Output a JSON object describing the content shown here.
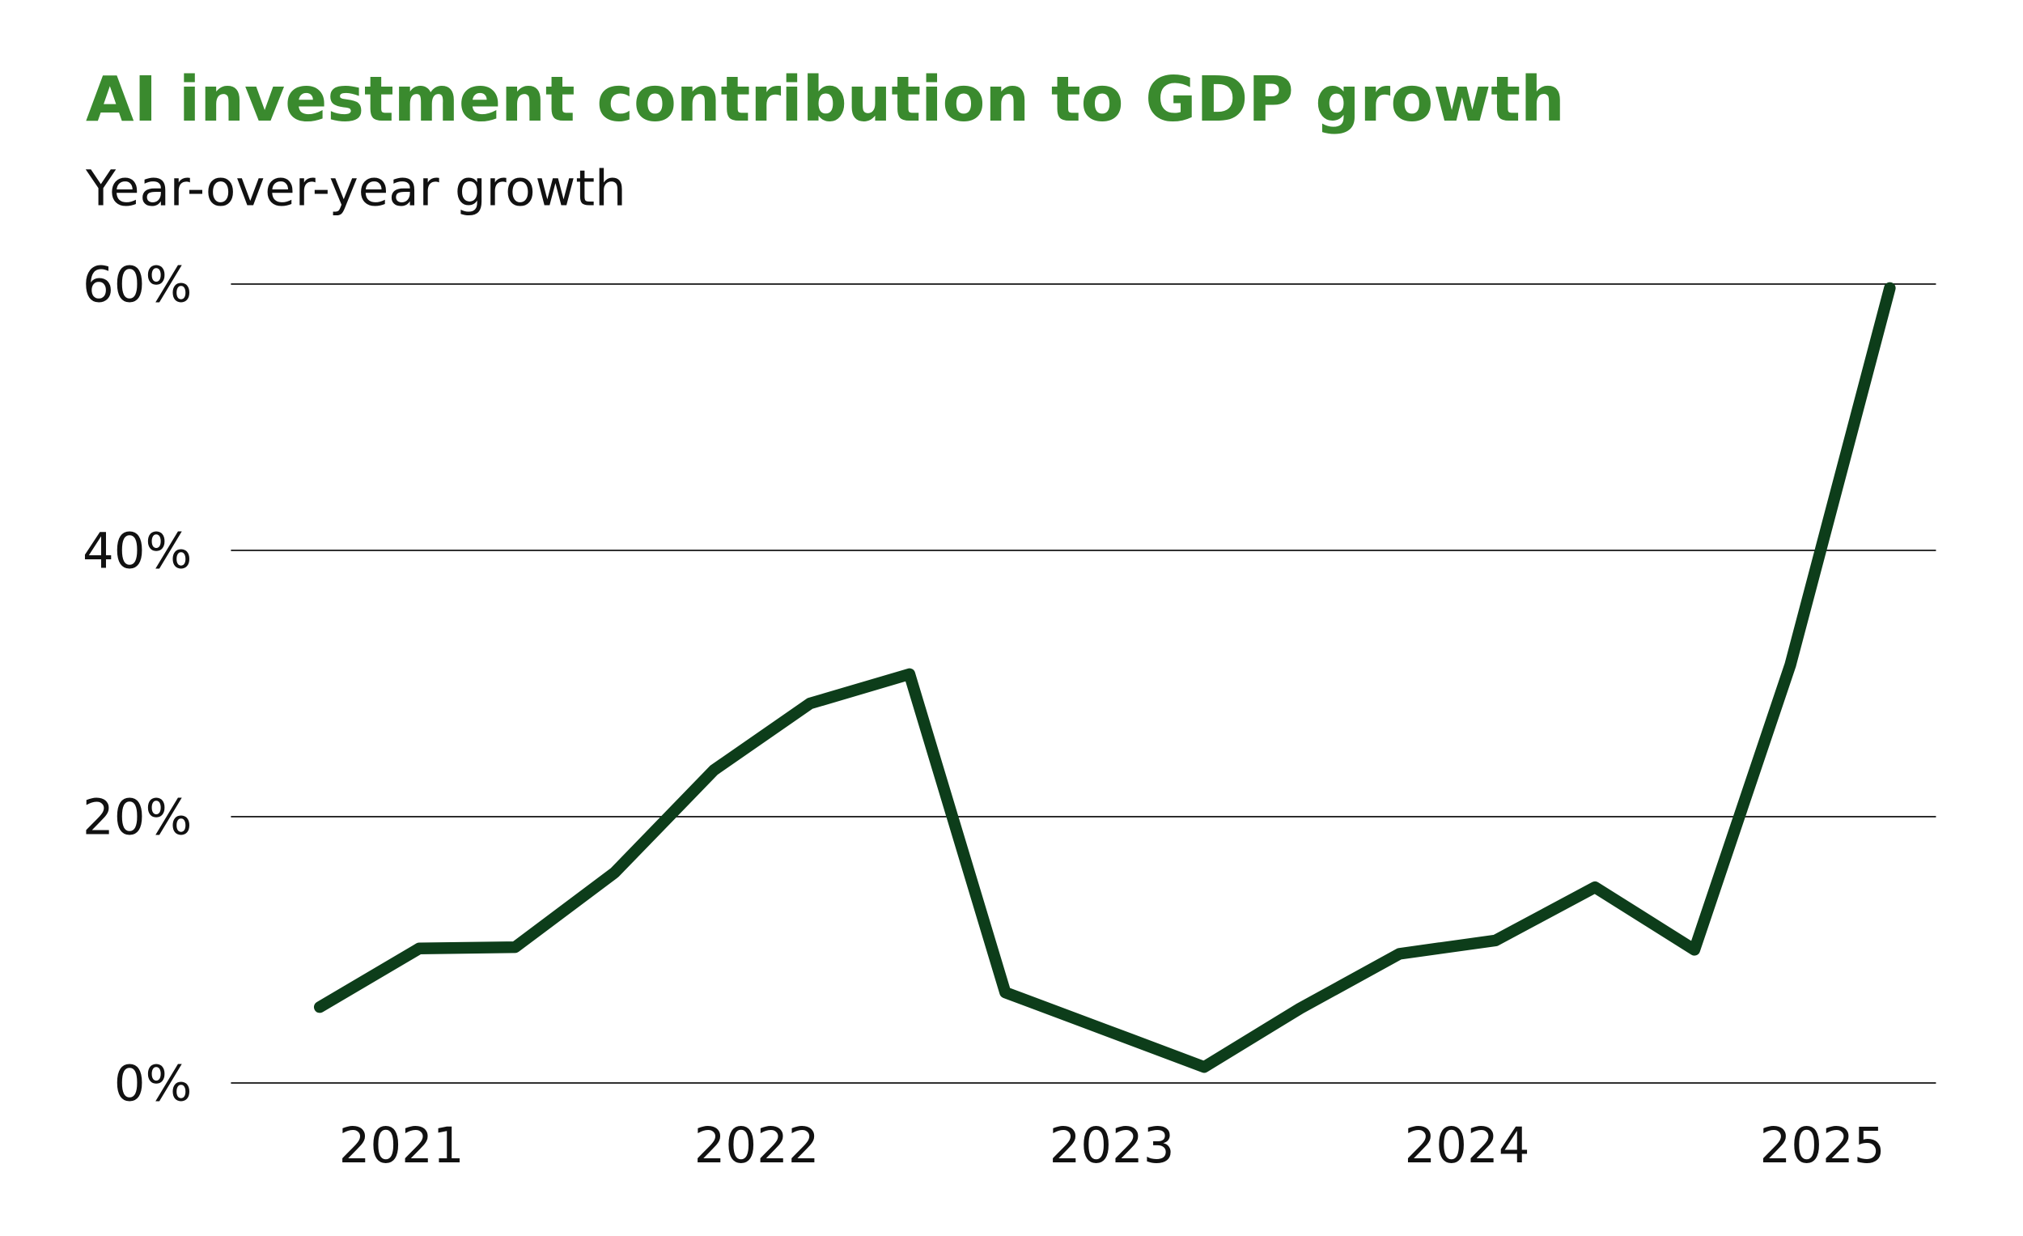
{
  "chart_data": {
    "type": "line",
    "title": "AI investment contribution to GDP growth",
    "subtitle": "Year-over-year growth",
    "x": [
      2020.77,
      2021.05,
      2021.32,
      2021.6,
      2021.88,
      2022.15,
      2022.43,
      2022.7,
      2022.98,
      2023.26,
      2023.53,
      2023.81,
      2024.08,
      2024.36,
      2024.64,
      2024.91,
      2025.19
    ],
    "values": [
      5.7,
      10.1,
      10.2,
      15.8,
      23.5,
      28.5,
      30.7,
      6.8,
      4.0,
      1.2,
      5.6,
      9.7,
      10.7,
      14.7,
      10.0,
      31.4,
      59.7
    ],
    "color": "#0d3d1a",
    "title_color": "#3a8a2e",
    "xlim": [
      2020.52,
      2025.32
    ],
    "xticks": [
      2021,
      2022,
      2023,
      2024,
      2025
    ],
    "ylim": [
      0,
      60
    ],
    "yticks": [
      {
        "value": 0,
        "label": "0%"
      },
      {
        "value": 20,
        "label": "20%"
      },
      {
        "value": 40,
        "label": "40%"
      },
      {
        "value": 60,
        "label": "60%"
      }
    ],
    "grid": true
  }
}
